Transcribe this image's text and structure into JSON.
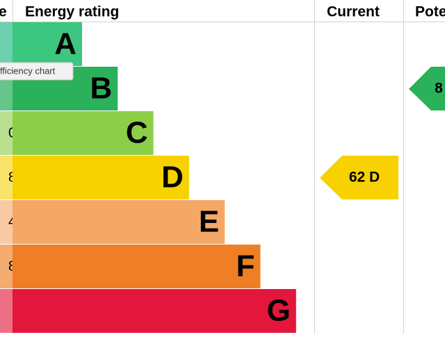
{
  "header": {
    "score": "e",
    "rating": "Energy rating",
    "current": "Current",
    "potential": "Pote"
  },
  "tooltip": "fficiency chart",
  "rows": [
    {
      "band": "A",
      "color": "#3dc67f",
      "tint": "#6ccfae"
    },
    {
      "band": "B",
      "color": "#2bb159",
      "tint": "#66c68a"
    },
    {
      "band": "C",
      "score": "0",
      "color": "#8dce48",
      "tint": "#b9e091"
    },
    {
      "band": "D",
      "score": "8",
      "color": "#f7d100",
      "tint": "#f9e36a"
    },
    {
      "band": "E",
      "score": "4",
      "color": "#f5a865",
      "tint": "#f8c9a2"
    },
    {
      "band": "F",
      "score": "8",
      "color": "#ee7f25",
      "tint": "#f3ab70"
    },
    {
      "band": "G",
      "color": "#e3163b",
      "tint": "#ec6f85"
    }
  ],
  "current": {
    "label": "62 D",
    "color": "#f7d100"
  },
  "potential": {
    "label": "8",
    "color": "#2bb159"
  }
}
